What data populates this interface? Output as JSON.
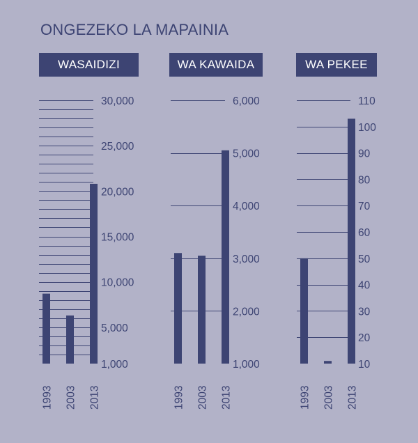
{
  "title": "ONGEZEKO LA MAPAINIA",
  "colors": {
    "background": "#b2b2c8",
    "accent": "#3d4473"
  },
  "chart_data": [
    {
      "type": "bar",
      "title": "WASAIDIZI",
      "categories": [
        "1993",
        "2003",
        "2013"
      ],
      "values": [
        8700,
        6300,
        20800
      ],
      "y_ticks": [
        1000,
        5000,
        10000,
        15000,
        20000,
        25000,
        30000
      ],
      "y_tick_labels": [
        "1,000",
        "5,000",
        "10,000",
        "15,000",
        "20,000",
        "25,000",
        "30,000"
      ],
      "ylim": [
        1000,
        30000
      ],
      "grid_interval": 1000,
      "grid": true
    },
    {
      "type": "bar",
      "title": "WA KAWAIDA",
      "categories": [
        "1993",
        "2003",
        "2013"
      ],
      "values": [
        3100,
        3050,
        5050
      ],
      "y_ticks": [
        1000,
        2000,
        3000,
        4000,
        5000,
        6000
      ],
      "y_tick_labels": [
        "1,000",
        "2,000",
        "3,000",
        "4,000",
        "5,000",
        "6,000"
      ],
      "ylim": [
        1000,
        6000
      ],
      "grid_interval": 1000,
      "grid": true
    },
    {
      "type": "bar",
      "title": "WA PEKEE",
      "categories": [
        "1993",
        "2003",
        "2013"
      ],
      "values": [
        50,
        11,
        103
      ],
      "y_ticks": [
        10,
        20,
        30,
        40,
        50,
        60,
        70,
        80,
        90,
        100,
        110
      ],
      "y_tick_labels": [
        "10",
        "20",
        "30",
        "40",
        "50",
        "60",
        "70",
        "80",
        "90",
        "100",
        "110"
      ],
      "ylim": [
        10,
        110
      ],
      "grid_interval": 10,
      "grid": true
    }
  ]
}
